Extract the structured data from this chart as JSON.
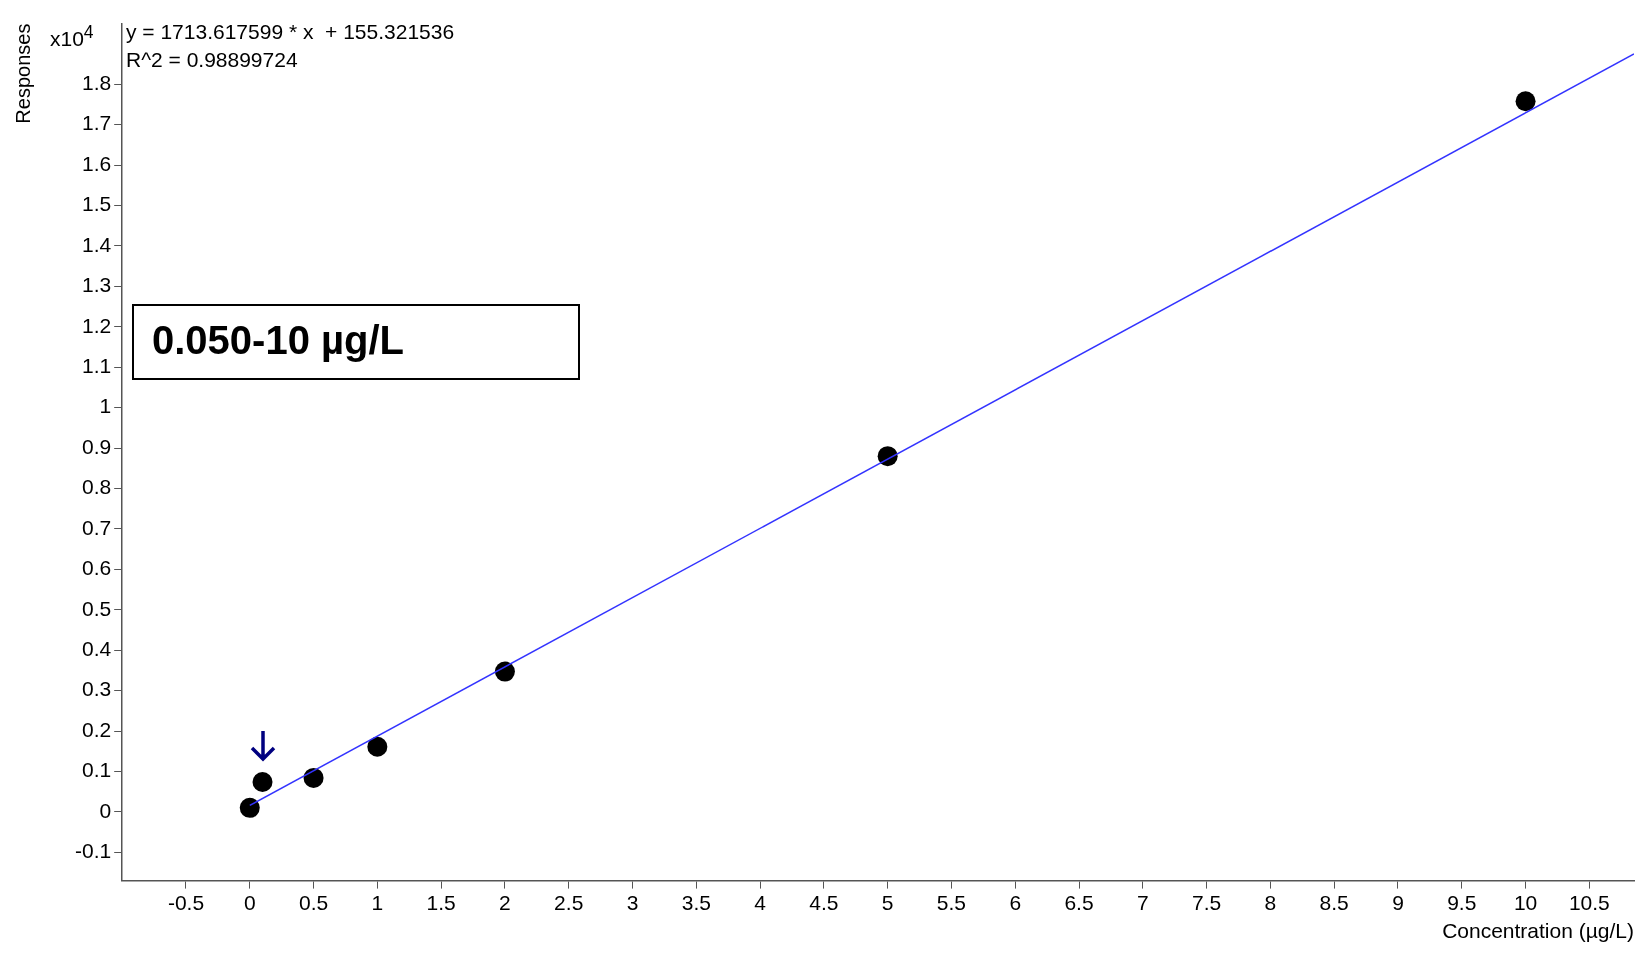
{
  "chart_data": {
    "type": "scatter",
    "xlabel": "Concentration (µg/L)",
    "ylabel": "Responses",
    "x": [
      0,
      0.1,
      0.5,
      1,
      2,
      5,
      10
    ],
    "series": [
      {
        "type": "scatter",
        "color": "#000000",
        "values": [
          0.01,
          0.074,
          0.084,
          0.161,
          0.347,
          0.88,
          1.758
        ]
      },
      {
        "type": "line",
        "color": "#3333ff",
        "x": [
          0,
          10.85
        ],
        "values": [
          0.016,
          1.875
        ],
        "marker": "none"
      }
    ],
    "xlim": [
      -1,
      10.85
    ],
    "xticks": [
      -0.5,
      0,
      0.5,
      1,
      1.5,
      2,
      2.5,
      3,
      3.5,
      4,
      4.5,
      5,
      5.5,
      6,
      6.5,
      7,
      7.5,
      8,
      8.5,
      9,
      9.5,
      10,
      10.5
    ],
    "ylim": [
      -0.17,
      1.95
    ],
    "yticks": [
      -0.1,
      0,
      0.1,
      0.2,
      0.3,
      0.4,
      0.5,
      0.6,
      0.7,
      0.8,
      0.9,
      1,
      1.1,
      1.2,
      1.3,
      1.4,
      1.5,
      1.6,
      1.7,
      1.8
    ],
    "grid": false,
    "legend": false,
    "marker": "circle",
    "annotations": [
      "x10$^{4}$",
      "y = 1713.617599 * x  + 155.321536",
      "R^2 = 0.98899724",
      "0.050-10 µg/L"
    ]
  }
}
